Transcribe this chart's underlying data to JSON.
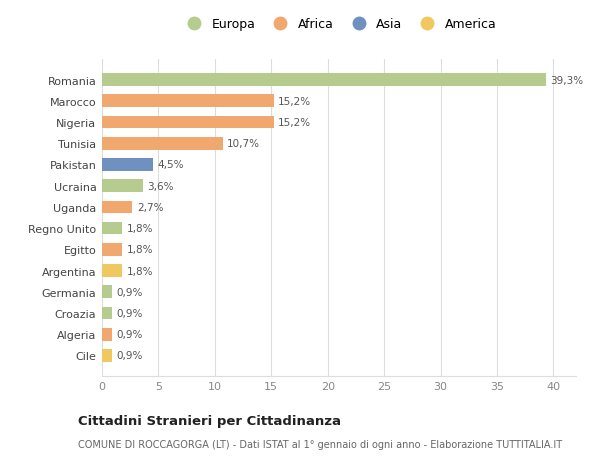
{
  "countries": [
    "Romania",
    "Marocco",
    "Nigeria",
    "Tunisia",
    "Pakistan",
    "Ucraina",
    "Uganda",
    "Regno Unito",
    "Egitto",
    "Argentina",
    "Germania",
    "Croazia",
    "Algeria",
    "Cile"
  ],
  "values": [
    39.3,
    15.2,
    15.2,
    10.7,
    4.5,
    3.6,
    2.7,
    1.8,
    1.8,
    1.8,
    0.9,
    0.9,
    0.9,
    0.9
  ],
  "labels": [
    "39,3%",
    "15,2%",
    "15,2%",
    "10,7%",
    "4,5%",
    "3,6%",
    "2,7%",
    "1,8%",
    "1,8%",
    "1,8%",
    "0,9%",
    "0,9%",
    "0,9%",
    "0,9%"
  ],
  "continents": [
    "Europa",
    "Africa",
    "Africa",
    "Africa",
    "Asia",
    "Europa",
    "Africa",
    "Europa",
    "Africa",
    "America",
    "Europa",
    "Europa",
    "Africa",
    "America"
  ],
  "colors": {
    "Europa": "#b5cc8e",
    "Africa": "#f0a86e",
    "Asia": "#7090c0",
    "America": "#f0c860"
  },
  "legend_order": [
    "Europa",
    "Africa",
    "Asia",
    "America"
  ],
  "title": "Cittadini Stranieri per Cittadinanza",
  "subtitle": "COMUNE DI ROCCAGORGA (LT) - Dati ISTAT al 1° gennaio di ogni anno - Elaborazione TUTTITALIA.IT",
  "xlim": [
    0,
    42
  ],
  "xticks": [
    0,
    5,
    10,
    15,
    20,
    25,
    30,
    35,
    40
  ],
  "bg_color": "#ffffff",
  "grid_color": "#dddddd"
}
